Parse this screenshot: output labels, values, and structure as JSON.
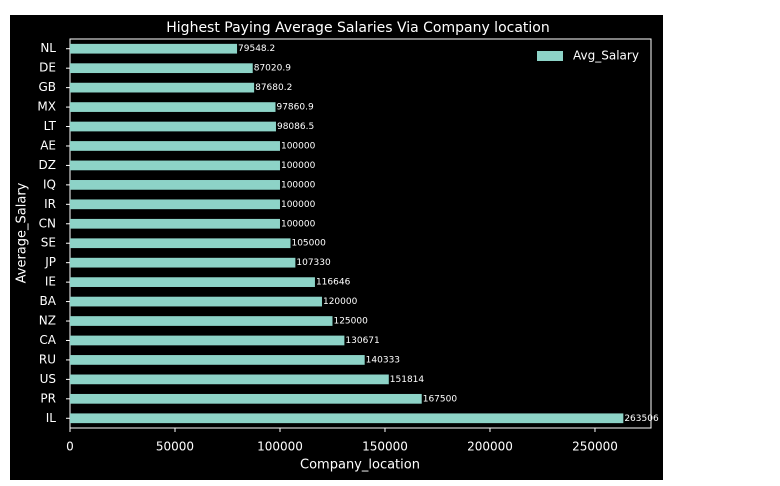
{
  "chart_data": {
    "type": "barh",
    "title": "Highest Paying Average Salaries Via Company location",
    "x_label": "Company_location",
    "y_label": "Average_Salary",
    "categories": [
      "IL",
      "PR",
      "US",
      "RU",
      "CA",
      "NZ",
      "BA",
      "IE",
      "JP",
      "SE",
      "CN",
      "IR",
      "IQ",
      "DZ",
      "AE",
      "LT",
      "MX",
      "GB",
      "DE",
      "NL"
    ],
    "series": [
      {
        "name": "Avg_Salary",
        "color": "#8dd3c7",
        "values": [
          263506,
          167500,
          151814,
          140333,
          130671,
          125000,
          120000,
          116646,
          107330,
          105000,
          100000,
          100000,
          100000,
          100000,
          100000,
          98086.5,
          97860.9,
          87680.2,
          87020.9,
          79548.2
        ]
      }
    ],
    "xlim": [
      0,
      276681
    ],
    "xticks": [
      0,
      50000,
      100000,
      150000,
      200000,
      250000
    ],
    "legend": "upper right"
  }
}
